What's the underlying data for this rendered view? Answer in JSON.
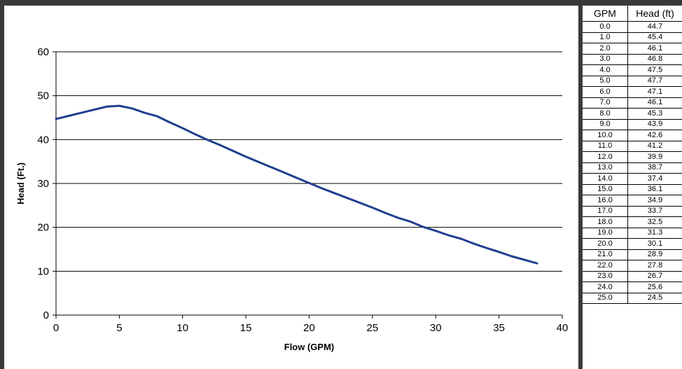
{
  "chart_data": {
    "type": "line",
    "xlabel": "Flow (GPM)",
    "ylabel": "Head (Ft.)",
    "xlim": [
      0,
      40
    ],
    "ylim": [
      0,
      60
    ],
    "x_ticks": [
      "0",
      "5",
      "10",
      "15",
      "20",
      "25",
      "30",
      "35",
      "40"
    ],
    "y_ticks": [
      "0",
      "10",
      "20",
      "30",
      "40",
      "50",
      "60"
    ],
    "grid": "horizontal",
    "line_color": "#1f3f8f",
    "series": [
      {
        "x": [
          0,
          1,
          2,
          3,
          4,
          5,
          6,
          7,
          8,
          9,
          10,
          11,
          12,
          13,
          14,
          15,
          16,
          17,
          18,
          19,
          20,
          21,
          22,
          23,
          24,
          25,
          26,
          27,
          28,
          29,
          30,
          31,
          32,
          33,
          34,
          35,
          36,
          37,
          38
        ],
        "values": [
          44.7,
          45.4,
          46.1,
          46.8,
          47.5,
          47.7,
          47.1,
          46.1,
          45.3,
          43.9,
          42.6,
          41.2,
          39.9,
          38.7,
          37.4,
          36.1,
          34.9,
          33.7,
          32.5,
          31.3,
          30.1,
          28.9,
          27.8,
          26.7,
          25.6,
          24.5,
          23.3,
          22.2,
          21.3,
          20.1,
          19.2,
          18.2,
          17.4,
          16.3,
          15.3,
          14.4,
          13.4,
          12.6,
          11.8
        ]
      }
    ]
  },
  "table": {
    "headers": [
      "GPM",
      "Head (ft)"
    ],
    "rows": [
      [
        "0.0",
        "44.7"
      ],
      [
        "1.0",
        "45.4"
      ],
      [
        "2.0",
        "46.1"
      ],
      [
        "3.0",
        "46.8"
      ],
      [
        "4.0",
        "47.5"
      ],
      [
        "5.0",
        "47.7"
      ],
      [
        "6.0",
        "47.1"
      ],
      [
        "7.0",
        "46.1"
      ],
      [
        "8.0",
        "45.3"
      ],
      [
        "9.0",
        "43.9"
      ],
      [
        "10.0",
        "42.6"
      ],
      [
        "11.0",
        "41.2"
      ],
      [
        "12.0",
        "39.9"
      ],
      [
        "13.0",
        "38.7"
      ],
      [
        "14.0",
        "37.4"
      ],
      [
        "15.0",
        "36.1"
      ],
      [
        "16.0",
        "34.9"
      ],
      [
        "17.0",
        "33.7"
      ],
      [
        "18.0",
        "32.5"
      ],
      [
        "19.0",
        "31.3"
      ],
      [
        "20.0",
        "30.1"
      ],
      [
        "21.0",
        "28.9"
      ],
      [
        "22.0",
        "27.8"
      ],
      [
        "23.0",
        "26.7"
      ],
      [
        "24.0",
        "25.6"
      ],
      [
        "25.0",
        "24.5"
      ]
    ]
  }
}
